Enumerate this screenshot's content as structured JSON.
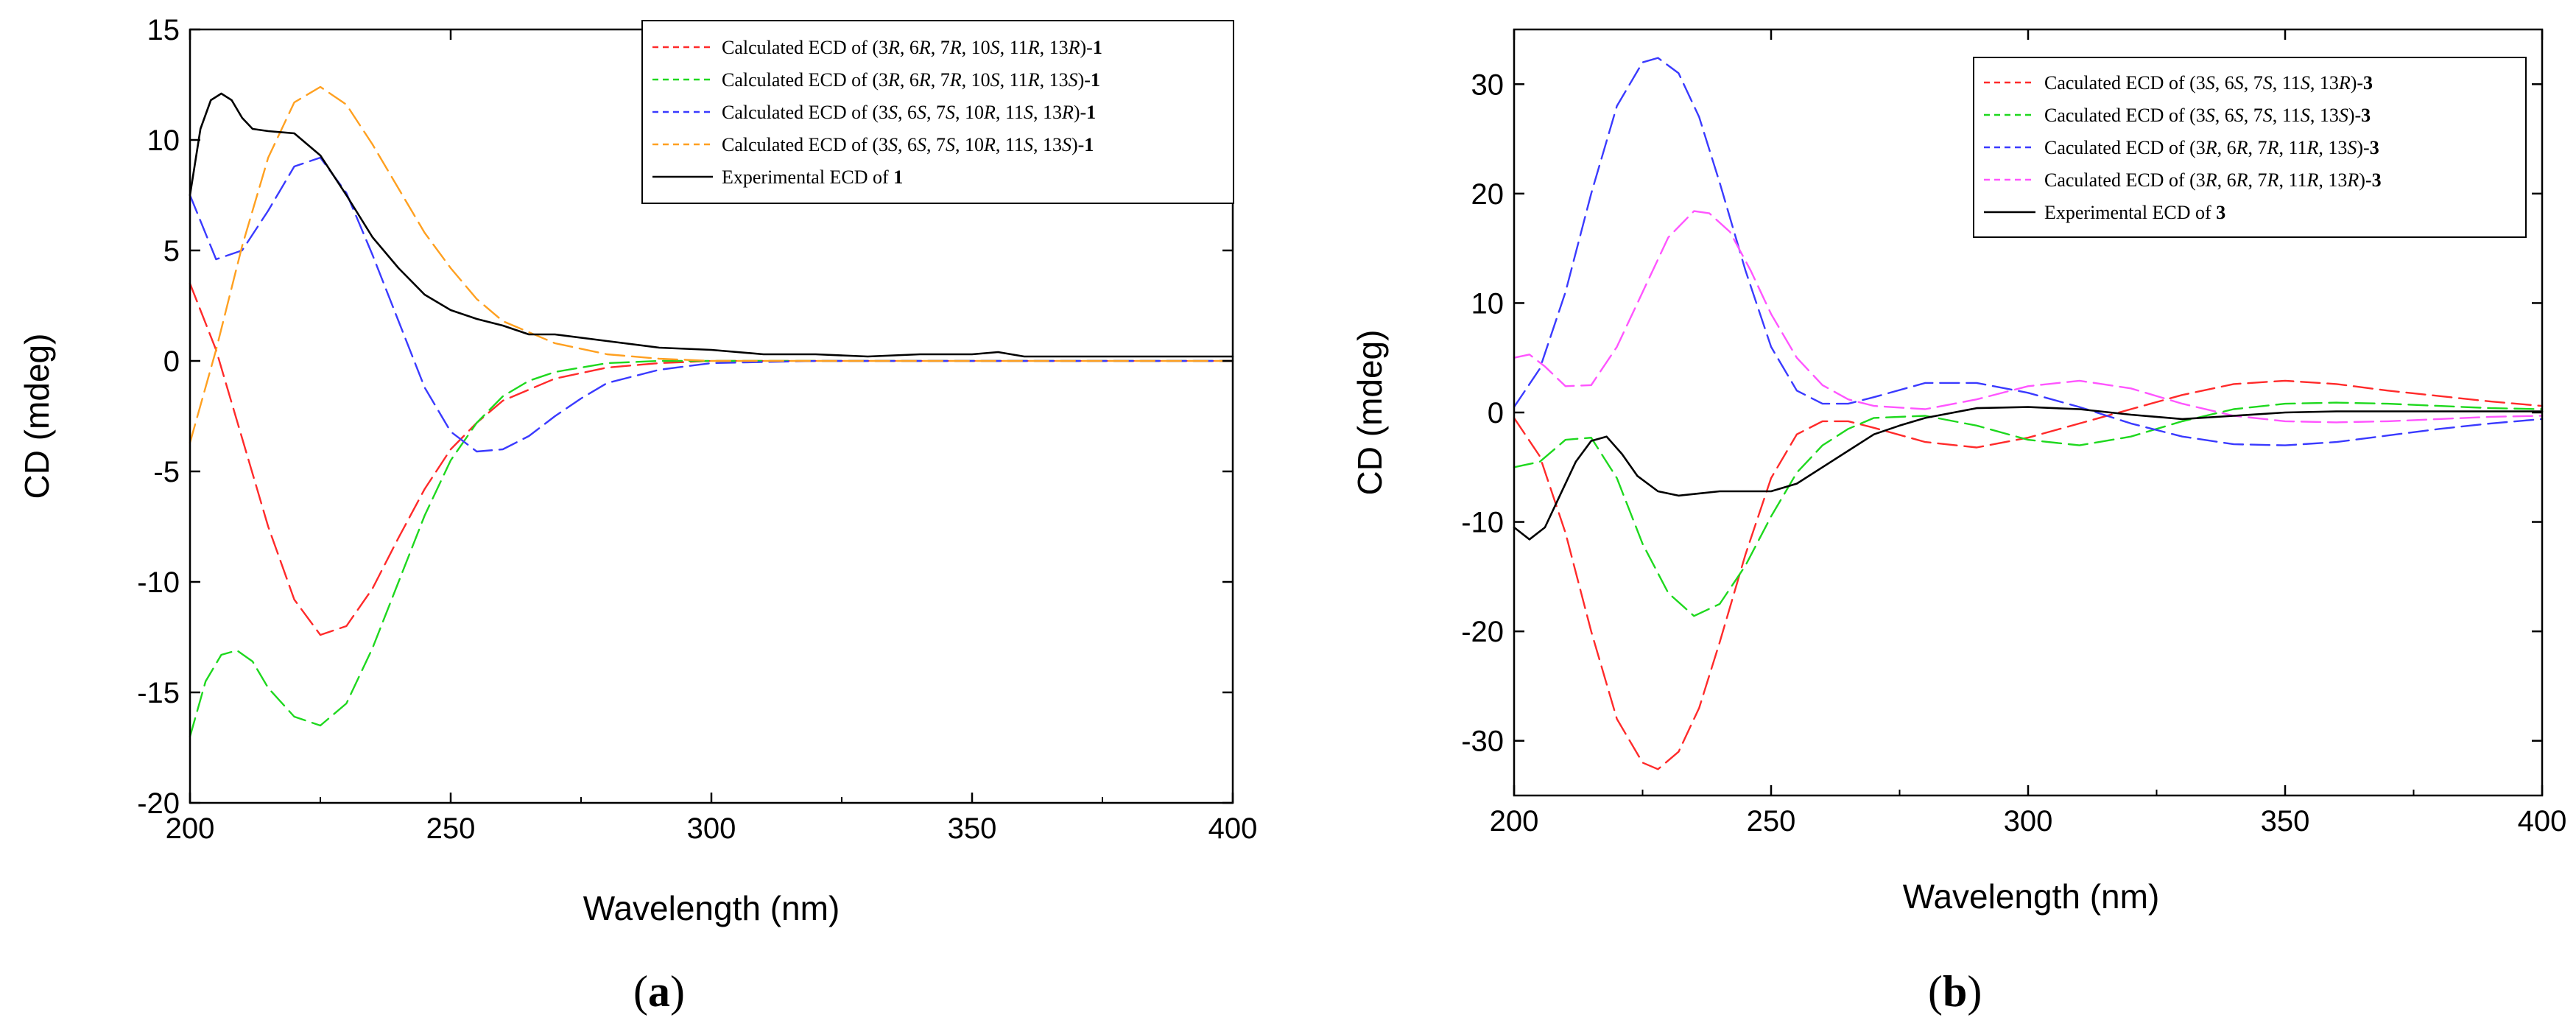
{
  "colors": {
    "red": "#ff2a2a",
    "green": "#1ed81e",
    "blue": "#3a3aff",
    "orange": "#ffa020",
    "magenta": "#ff55ff",
    "black": "#000000"
  },
  "chart_data": [
    {
      "type": "line",
      "panel_label": "a",
      "xlabel": "Wavelength (nm)",
      "ylabel": "CD (mdeg)",
      "xlim": [
        200,
        400
      ],
      "ylim": [
        -20,
        15
      ],
      "xticks": [
        200,
        250,
        300,
        350,
        400
      ],
      "yticks": [
        -20,
        -15,
        -10,
        -5,
        0,
        5,
        10,
        15
      ],
      "legend_position": "top-right",
      "series": [
        {
          "id": "a_s1",
          "name": "Calculated ECD of (3R, 6R, 7R, 10S, 11R, 13R)-1",
          "legend_parts": [
            "Calculated ECD of (3",
            "R",
            ", 6",
            "R",
            ", 7",
            "R",
            ", 10",
            "S",
            ", 11",
            "R",
            ", 13",
            "R",
            ")-",
            "1"
          ],
          "color_key": "red",
          "style": "dashed",
          "x": [
            200,
            205,
            210,
            215,
            220,
            225,
            230,
            235,
            240,
            245,
            250,
            255,
            260,
            270,
            280,
            290,
            300,
            320,
            350,
            400
          ],
          "y": [
            3.5,
            0.5,
            -3.5,
            -7.5,
            -10.8,
            -12.4,
            -12.0,
            -10.3,
            -8.0,
            -5.8,
            -4.0,
            -2.8,
            -1.8,
            -0.8,
            -0.3,
            -0.1,
            0,
            0,
            0,
            0
          ]
        },
        {
          "id": "a_s2",
          "name": "Calculated ECD of (3R, 6R, 7R, 10S, 11R, 13S)-1",
          "legend_parts": [
            "Calculated ECD of (3",
            "R",
            ", 6",
            "R",
            ", 7",
            "R",
            ", 10",
            "S",
            ", 11",
            "R",
            ", 13",
            "S",
            ")-",
            "1"
          ],
          "color_key": "green",
          "style": "dashed",
          "x": [
            200,
            203,
            206,
            209,
            212,
            215,
            220,
            225,
            230,
            235,
            240,
            245,
            250,
            255,
            260,
            265,
            270,
            280,
            290,
            300,
            320,
            350,
            400
          ],
          "y": [
            -17.0,
            -14.5,
            -13.3,
            -13.1,
            -13.6,
            -14.8,
            -16.1,
            -16.5,
            -15.5,
            -13.0,
            -10.0,
            -7.0,
            -4.5,
            -2.8,
            -1.6,
            -0.9,
            -0.5,
            -0.1,
            0,
            0,
            0,
            0,
            0
          ]
        },
        {
          "id": "a_s3",
          "name": "Calculated ECD of (3S, 6S, 7S, 10R, 11S, 13R)-1",
          "legend_parts": [
            "Calculated ECD of (3",
            "S",
            ", 6",
            "S",
            ", 7",
            "S",
            ", 10",
            "R",
            ", 11",
            "S",
            ", 13",
            "R",
            ")-",
            "1"
          ],
          "color_key": "blue",
          "style": "dashed",
          "x": [
            200,
            205,
            210,
            215,
            220,
            225,
            230,
            235,
            240,
            245,
            250,
            255,
            260,
            265,
            270,
            275,
            280,
            290,
            300,
            320,
            350,
            400
          ],
          "y": [
            7.5,
            4.6,
            5.0,
            6.8,
            8.8,
            9.2,
            7.6,
            4.8,
            1.8,
            -1.2,
            -3.2,
            -4.1,
            -4.0,
            -3.4,
            -2.5,
            -1.7,
            -1.0,
            -0.4,
            -0.1,
            0,
            0,
            0
          ]
        },
        {
          "id": "a_s4",
          "name": "Calculated ECD of (3S, 6S, 7S, 10R, 11S, 13S)-1",
          "legend_parts": [
            "Calculated ECD of (3",
            "S",
            ", 6",
            "S",
            ", 7",
            "S",
            ", 10",
            "R",
            ", 11",
            "S",
            ", 13",
            "S",
            ")-",
            "1"
          ],
          "color_key": "orange",
          "style": "dashed",
          "x": [
            200,
            205,
            210,
            215,
            220,
            225,
            230,
            235,
            240,
            245,
            250,
            255,
            260,
            270,
            280,
            290,
            300,
            320,
            350,
            400
          ],
          "y": [
            -3.7,
            0.5,
            5.2,
            9.2,
            11.7,
            12.4,
            11.6,
            9.8,
            7.8,
            5.8,
            4.2,
            2.8,
            1.8,
            0.8,
            0.3,
            0.1,
            0,
            0,
            0,
            0
          ]
        },
        {
          "id": "a_s5",
          "name": "Experimental ECD of 1",
          "legend_parts": [
            "Experimental ECD of ",
            "1"
          ],
          "color_key": "black",
          "style": "solid",
          "x": [
            200,
            202,
            204,
            206,
            208,
            210,
            212,
            215,
            220,
            225,
            230,
            235,
            240,
            245,
            250,
            255,
            260,
            265,
            270,
            280,
            290,
            300,
            310,
            320,
            330,
            340,
            350,
            355,
            360,
            370,
            380,
            390,
            400
          ],
          "y": [
            7.5,
            10.5,
            11.8,
            12.1,
            11.8,
            11.0,
            10.5,
            10.4,
            10.3,
            9.3,
            7.5,
            5.6,
            4.2,
            3.0,
            2.3,
            1.9,
            1.6,
            1.2,
            1.2,
            0.9,
            0.6,
            0.5,
            0.3,
            0.3,
            0.2,
            0.3,
            0.3,
            0.4,
            0.2,
            0.2,
            0.2,
            0.2,
            0.2
          ]
        }
      ]
    },
    {
      "type": "line",
      "panel_label": "b",
      "xlabel": "Wavelength (nm)",
      "ylabel": "CD (mdeg)",
      "xlim": [
        200,
        400
      ],
      "ylim": [
        -35,
        35
      ],
      "xticks": [
        200,
        250,
        300,
        350,
        400
      ],
      "yticks": [
        -30,
        -20,
        -10,
        0,
        10,
        20,
        30
      ],
      "legend_position": "top-right",
      "series": [
        {
          "id": "b_s1",
          "name": "Caculated ECD of (3S, 6S, 7S, 11S, 13R)-3",
          "legend_parts": [
            "Caculated ECD of (3",
            "S",
            ", 6",
            "S",
            ", 7",
            "S",
            ", 11",
            "S",
            ", 13",
            "R",
            ")-",
            "3"
          ],
          "color_key": "red",
          "style": "dashed",
          "x": [
            200,
            205,
            210,
            215,
            220,
            225,
            228,
            232,
            236,
            240,
            245,
            250,
            255,
            260,
            265,
            270,
            280,
            290,
            300,
            310,
            320,
            330,
            340,
            350,
            360,
            370,
            380,
            390,
            400
          ],
          "y": [
            -0.5,
            -4,
            -11,
            -20,
            -28,
            -32,
            -32.6,
            -31,
            -27,
            -21,
            -13,
            -6,
            -2,
            -0.8,
            -0.8,
            -1.4,
            -2.7,
            -3.2,
            -2.3,
            -1.0,
            0.3,
            1.6,
            2.6,
            2.9,
            2.6,
            2.0,
            1.5,
            1.0,
            0.6
          ]
        },
        {
          "id": "b_s2",
          "name": "Caculated ECD of (3S, 6S, 7S, 11S, 13S)-3",
          "legend_parts": [
            "Caculated ECD of (3",
            "S",
            ", 6",
            "S",
            ", 7",
            "S",
            ", 11",
            "S",
            ", 13",
            "S",
            ")-",
            "3"
          ],
          "color_key": "green",
          "style": "dashed",
          "x": [
            200,
            205,
            210,
            215,
            220,
            225,
            230,
            235,
            240,
            245,
            250,
            255,
            260,
            265,
            270,
            280,
            290,
            300,
            310,
            320,
            330,
            340,
            350,
            360,
            370,
            380,
            390,
            400
          ],
          "y": [
            -5,
            -4.5,
            -2.5,
            -2.3,
            -6,
            -12,
            -16.5,
            -18.6,
            -17.5,
            -14,
            -9.5,
            -5.5,
            -3,
            -1.5,
            -0.5,
            -0.3,
            -1.2,
            -2.5,
            -3.0,
            -2.2,
            -0.8,
            0.3,
            0.8,
            0.9,
            0.8,
            0.6,
            0.4,
            0.3
          ]
        },
        {
          "id": "b_s3",
          "name": "Caculated ECD of (3R, 6R, 7R, 11R, 13S)-3",
          "legend_parts": [
            "Caculated ECD of (3",
            "R",
            ", 6",
            "R",
            ", 7",
            "R",
            ", 11",
            "R",
            ", 13",
            "S",
            ")-",
            "3"
          ],
          "color_key": "blue",
          "style": "dashed",
          "x": [
            200,
            205,
            210,
            215,
            220,
            225,
            228,
            232,
            236,
            240,
            245,
            250,
            255,
            260,
            265,
            270,
            280,
            290,
            300,
            310,
            320,
            330,
            340,
            350,
            360,
            370,
            380,
            390,
            400
          ],
          "y": [
            0.5,
            4,
            11,
            20,
            28,
            32,
            32.4,
            31,
            27,
            21,
            13,
            6,
            2,
            0.8,
            0.8,
            1.4,
            2.7,
            2.7,
            1.8,
            0.5,
            -1.0,
            -2.2,
            -2.9,
            -3.0,
            -2.7,
            -2.1,
            -1.5,
            -1.0,
            -0.6
          ]
        },
        {
          "id": "b_s4",
          "name": "Caculated ECD of (3R, 6R, 7R, 11R, 13R)-3",
          "legend_parts": [
            "Caculated ECD of (3",
            "R",
            ", 6",
            "R",
            ", 7",
            "R",
            ", 11",
            "R",
            ", 13",
            "R",
            ")-",
            "3"
          ],
          "color_key": "magenta",
          "style": "dashed",
          "x": [
            200,
            203,
            206,
            210,
            215,
            220,
            225,
            230,
            235,
            238,
            242,
            246,
            250,
            255,
            260,
            265,
            270,
            280,
            290,
            300,
            310,
            320,
            330,
            340,
            350,
            360,
            370,
            380,
            390,
            400
          ],
          "y": [
            5,
            5.3,
            4.2,
            2.4,
            2.5,
            6,
            11,
            16,
            18.4,
            18.2,
            16.5,
            13,
            9,
            5,
            2.5,
            1.2,
            0.6,
            0.3,
            1.2,
            2.4,
            2.9,
            2.2,
            0.8,
            -0.3,
            -0.8,
            -0.9,
            -0.8,
            -0.6,
            -0.4,
            -0.3
          ]
        },
        {
          "id": "b_s5",
          "name": "Experimental ECD of 3",
          "legend_parts": [
            "Experimental ECD of ",
            "3"
          ],
          "color_key": "black",
          "style": "solid",
          "x": [
            200,
            203,
            206,
            209,
            212,
            215,
            218,
            221,
            224,
            228,
            232,
            236,
            240,
            245,
            250,
            255,
            260,
            265,
            270,
            275,
            280,
            290,
            300,
            310,
            320,
            330,
            340,
            350,
            360,
            370,
            380,
            390,
            400
          ],
          "y": [
            -10.5,
            -11.6,
            -10.5,
            -7.5,
            -4.5,
            -2.6,
            -2.2,
            -3.8,
            -5.8,
            -7.2,
            -7.6,
            -7.4,
            -7.2,
            -7.2,
            -7.2,
            -6.5,
            -5,
            -3.5,
            -2,
            -1.2,
            -0.5,
            0.4,
            0.5,
            0.3,
            -0.2,
            -0.6,
            -0.3,
            0,
            0.1,
            0.1,
            0.1,
            0.1,
            0.1
          ]
        }
      ]
    }
  ]
}
